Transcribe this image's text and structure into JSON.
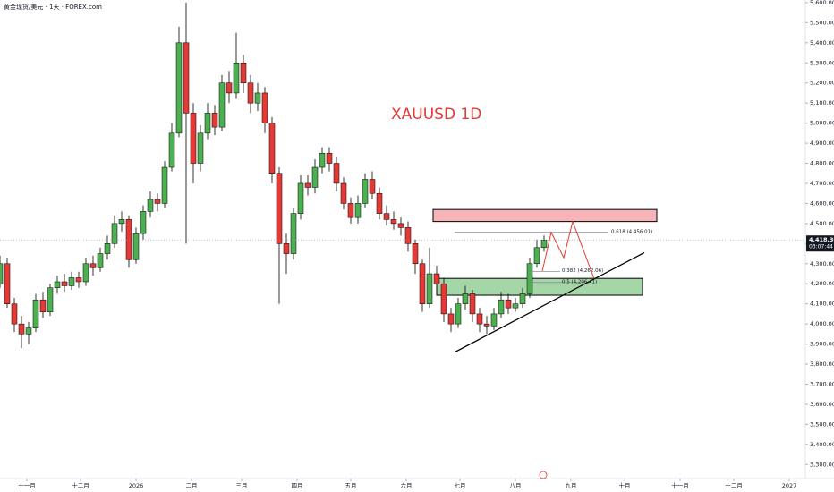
{
  "chart_data": {
    "type": "candlestick",
    "symbol_label": "黄金现货/美元 · 1天 · FOREX.com",
    "title": "XAUUSD 1D",
    "up_color": "#4caf50",
    "down_color": "#e53935",
    "xlim": [
      -15,
      435
    ],
    "ylim": [
      3230,
      5613
    ],
    "grid": false,
    "xticks": [
      {
        "value": 0,
        "label": "十一月"
      },
      {
        "value": 30,
        "label": "十二月"
      },
      {
        "value": 61,
        "label": "2026"
      },
      {
        "value": 92,
        "label": "二月"
      },
      {
        "value": 120,
        "label": "三月"
      },
      {
        "value": 151,
        "label": "四月"
      },
      {
        "value": 181,
        "label": "五月"
      },
      {
        "value": 212,
        "label": "六月"
      },
      {
        "value": 242,
        "label": "七月"
      },
      {
        "value": 273,
        "label": "八月"
      },
      {
        "value": 304,
        "label": "九月"
      },
      {
        "value": 334,
        "label": "十月"
      },
      {
        "value": 365,
        "label": "十一月"
      },
      {
        "value": 395,
        "label": "十二月"
      },
      {
        "value": 426,
        "label": "2027"
      }
    ],
    "yticks": [
      {
        "value": 3300,
        "label": "3,300.00"
      },
      {
        "value": 3400,
        "label": "3,400.00"
      },
      {
        "value": 3500,
        "label": "3,500.00"
      },
      {
        "value": 3600,
        "label": "3,600.00"
      },
      {
        "value": 3700,
        "label": "3,700.00"
      },
      {
        "value": 3800,
        "label": "3,800.00"
      },
      {
        "value": 3900,
        "label": "3,900.00"
      },
      {
        "value": 4000,
        "label": "4,000.00"
      },
      {
        "value": 4100,
        "label": "4,100.00"
      },
      {
        "value": 4200,
        "label": "4,200.00"
      },
      {
        "value": 4300,
        "label": "4,300.00"
      },
      {
        "value": 4400,
        "label": "4,400.00"
      },
      {
        "value": 4500,
        "label": "4,500.00"
      },
      {
        "value": 4600,
        "label": "4,600.00"
      },
      {
        "value": 4700,
        "label": "4,700.00"
      },
      {
        "value": 4800,
        "label": "4,800.00"
      },
      {
        "value": 4900,
        "label": "4,900.00"
      },
      {
        "value": 5000,
        "label": "5,000.00"
      },
      {
        "value": 5100,
        "label": "5,100.00"
      },
      {
        "value": 5200,
        "label": "5,200.00"
      },
      {
        "value": 5300,
        "label": "5,300.00"
      },
      {
        "value": 5400,
        "label": "5,400.00"
      },
      {
        "value": 5500,
        "label": "5,500.00"
      },
      {
        "value": 5600,
        "label": "5,600.00"
      }
    ],
    "x": [
      -15,
      -11,
      -7,
      -3,
      1,
      5,
      9,
      13,
      17,
      21,
      25,
      29,
      33,
      37,
      41,
      45,
      49,
      53,
      57,
      61,
      65,
      69,
      73,
      77,
      81,
      85,
      89,
      93,
      97,
      101,
      105,
      109,
      113,
      117,
      121,
      125,
      129,
      133,
      137,
      141,
      145,
      149,
      153,
      157,
      161,
      165,
      169,
      173,
      177,
      181,
      185,
      189,
      193,
      197,
      201,
      205,
      209,
      213,
      217,
      221,
      225,
      229,
      233,
      237,
      241,
      245,
      249,
      253,
      257,
      261,
      265,
      269,
      273,
      277,
      281,
      285,
      289
    ],
    "open": [
      4200,
      4300,
      4100,
      4000,
      3950,
      3980,
      4120,
      4060,
      4180,
      4210,
      4190,
      4230,
      4210,
      4300,
      4280,
      4350,
      4400,
      4500,
      4520,
      4320,
      4450,
      4560,
      4620,
      4600,
      4780,
      4950,
      5400,
      5050,
      4800,
      4950,
      5050,
      4980,
      5200,
      5150,
      5300,
      5200,
      5100,
      5150,
      5000,
      4750,
      4400,
      4350,
      4550,
      4700,
      4680,
      4780,
      4850,
      4800,
      4700,
      4600,
      4530,
      4600,
      4720,
      4650,
      4550,
      4520,
      4500,
      4480,
      4400,
      4300,
      4100,
      4250,
      4200,
      4050,
      4000,
      4100,
      4150,
      4050,
      4000,
      3990,
      4050,
      4120,
      4080,
      4100,
      4150,
      4300,
      4380
    ],
    "high": [
      4340,
      4330,
      4130,
      4040,
      4010,
      4150,
      4160,
      4200,
      4240,
      4250,
      4260,
      4260,
      4330,
      4340,
      4380,
      4440,
      4540,
      4560,
      4540,
      4480,
      4590,
      4660,
      4650,
      4810,
      5000,
      5480,
      5600,
      5100,
      4990,
      5100,
      5090,
      5240,
      5260,
      5450,
      5340,
      5240,
      5200,
      5180,
      5030,
      4780,
      4450,
      4580,
      4740,
      4740,
      4820,
      4880,
      4880,
      4830,
      4730,
      4630,
      4640,
      4750,
      4760,
      4680,
      4590,
      4560,
      4530,
      4510,
      4420,
      4320,
      4380,
      4290,
      4230,
      4080,
      4130,
      4190,
      4170,
      4080,
      4040,
      4080,
      4160,
      4150,
      4130,
      4180,
      4330,
      4420,
      4440
    ],
    "low": [
      4180,
      4080,
      3960,
      3880,
      3900,
      3960,
      4030,
      4040,
      4150,
      4160,
      4170,
      4180,
      4190,
      4240,
      4260,
      4320,
      4380,
      4460,
      4280,
      4300,
      4420,
      4530,
      4560,
      4580,
      4760,
      4930,
      4400,
      4700,
      4760,
      4920,
      4940,
      4960,
      5100,
      5120,
      5150,
      5050,
      5060,
      4950,
      4700,
      4100,
      4250,
      4320,
      4520,
      4640,
      4650,
      4750,
      4760,
      4660,
      4570,
      4500,
      4500,
      4580,
      4620,
      4520,
      4490,
      4470,
      4440,
      4360,
      4250,
      4060,
      4080,
      4150,
      4010,
      3960,
      3980,
      4070,
      4010,
      3960,
      3950,
      3970,
      4030,
      4050,
      4060,
      4080,
      4130,
      4280,
      4360
    ],
    "close": [
      4300,
      4100,
      4000,
      3950,
      3980,
      4120,
      4060,
      4180,
      4210,
      4190,
      4230,
      4210,
      4300,
      4280,
      4350,
      4400,
      4500,
      4520,
      4320,
      4450,
      4560,
      4620,
      4600,
      4780,
      4950,
      5400,
      5050,
      4800,
      4950,
      5050,
      4980,
      5200,
      5150,
      5300,
      5200,
      5100,
      5150,
      5000,
      4750,
      4400,
      4350,
      4550,
      4700,
      4680,
      4780,
      4850,
      4800,
      4700,
      4600,
      4530,
      4600,
      4720,
      4650,
      4550,
      4520,
      4500,
      4480,
      4400,
      4300,
      4100,
      4250,
      4200,
      4050,
      4000,
      4100,
      4150,
      4050,
      4000,
      3990,
      4050,
      4120,
      4080,
      4100,
      4150,
      4300,
      4380,
      4418
    ],
    "last_price": {
      "value": 4418.3,
      "label": "4,418.30",
      "countdown": "03:07:44"
    },
    "zones": [
      {
        "x": [
          227,
          352
        ],
        "y": [
          4510,
          4570
        ],
        "color": "#f8b4b8"
      },
      {
        "x": [
          229,
          344
        ],
        "y": [
          4143,
          4227
        ],
        "color": "#a5d6a7"
      }
    ],
    "fib_levels": [
      {
        "value": 4456.01,
        "label": "0.618 (4,456.01)",
        "x": [
          239,
          325
        ]
      },
      {
        "value": 4262.06,
        "label": "0.382 (4,262.06)",
        "x": [
          280,
          298
        ]
      },
      {
        "value": 4206.41,
        "label": "0.5 (4,206.41)",
        "x": [
          280,
          315
        ]
      }
    ],
    "trendline": {
      "x": [
        239,
        345
      ],
      "y": [
        3859,
        4355
      ]
    },
    "projection": {
      "x": [
        288,
        293,
        300,
        305,
        317
      ],
      "y": [
        4262,
        4456,
        4330,
        4510,
        4225
      ],
      "color": "#e53935"
    }
  }
}
